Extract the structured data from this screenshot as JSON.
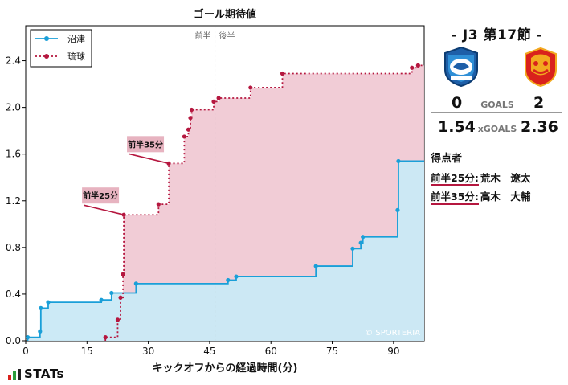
{
  "chart_data": {
    "type": "line",
    "step": true,
    "title": "ゴール期待値",
    "xlabel": "キックオフからの経過時間(分)",
    "ylabel": "",
    "xlim": [
      0,
      97.5
    ],
    "ylim": [
      0,
      2.7
    ],
    "xticks": [
      "0",
      "15",
      "30",
      "45",
      "60",
      "75",
      "90"
    ],
    "yticks": [
      "0.0",
      "0.4",
      "0.8",
      "1.2",
      "1.6",
      "2.0",
      "2.4"
    ],
    "half_time_minute": 46.3,
    "first_half_label": "前半",
    "second_half_label": "後半",
    "legend_position": "top-left",
    "watermark": "© SPORTERIA",
    "series": [
      {
        "name": "沼津",
        "color": "#1a9fd8",
        "fill": "#c9e9f6",
        "line_style": "solid",
        "x": [
          0.5,
          3.5,
          3.7,
          5.5,
          18.5,
          21.0,
          27.0,
          49.5,
          51.5,
          71.0,
          80.0,
          82.0,
          82.5,
          91.0,
          91.2,
          97.5
        ],
        "y": [
          0.03,
          0.08,
          0.28,
          0.33,
          0.35,
          0.41,
          0.49,
          0.52,
          0.55,
          0.64,
          0.79,
          0.84,
          0.89,
          1.12,
          1.54,
          1.54
        ]
      },
      {
        "name": "琉球",
        "color": "#b5173f",
        "fill": "#f0c7d1",
        "line_style": "dotted",
        "x": [
          19.5,
          22.5,
          23.2,
          23.8,
          24.0,
          32.5,
          35.0,
          38.8,
          39.8,
          40.3,
          40.6,
          46.0,
          47.2,
          55.0,
          62.8,
          94.5,
          96.0,
          97.5
        ],
        "y": [
          0.03,
          0.18,
          0.37,
          0.57,
          1.08,
          1.17,
          1.52,
          1.75,
          1.81,
          1.91,
          1.98,
          2.05,
          2.08,
          2.17,
          2.29,
          2.34,
          2.36,
          2.36
        ]
      }
    ],
    "annotations": [
      {
        "text": "前半25分",
        "x": 24.0,
        "y": 1.08,
        "series": "琉球"
      },
      {
        "text": "前半35分",
        "x": 35.0,
        "y": 1.52,
        "series": "琉球"
      }
    ]
  },
  "match": {
    "title": "-  J3 第17節  -",
    "home_score": "0",
    "away_score": "2",
    "goals_label": "GOALS",
    "home_xg": "1.54",
    "away_xg": "2.36",
    "xgoals_label": "xGOALS",
    "home_crest_icon": "numazu-crest-icon",
    "away_crest_icon": "ryukyu-crest-icon"
  },
  "scorers": {
    "heading": "得点者",
    "items": [
      {
        "time": "前半25分:",
        "name": "荒木　遼太"
      },
      {
        "time": "前半35分:",
        "name": "高木　大輔"
      }
    ]
  },
  "branding": {
    "stats_logo": "STATs"
  }
}
